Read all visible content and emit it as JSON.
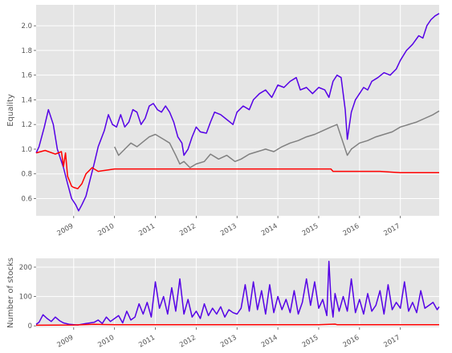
{
  "chart_data": [
    {
      "type": "line",
      "ylabel": "Equality",
      "xlim": [
        2008.08,
        2017.95
      ],
      "ylim": [
        0.46,
        2.17
      ],
      "grid": true,
      "x_ticks": [
        "2009",
        "2010",
        "2011",
        "2012",
        "2013",
        "2014",
        "2015",
        "2016",
        "2017"
      ],
      "y_ticks": [
        "0.6",
        "0.8",
        "1.0",
        "1.2",
        "1.4",
        "1.6",
        "1.8",
        "2.0"
      ],
      "series": [
        {
          "color": "#5500e6",
          "x": [
            2008.08,
            2008.15,
            2008.28,
            2008.38,
            2008.5,
            2008.6,
            2008.75,
            2008.85,
            2008.95,
            2009.05,
            2009.12,
            2009.2,
            2009.3,
            2009.4,
            2009.5,
            2009.6,
            2009.75,
            2009.85,
            2009.95,
            2010.05,
            2010.15,
            2010.25,
            2010.35,
            2010.45,
            2010.55,
            2010.65,
            2010.75,
            2010.85,
            2010.95,
            2011.05,
            2011.15,
            2011.25,
            2011.35,
            2011.45,
            2011.55,
            2011.65,
            2011.7,
            2011.8,
            2011.9,
            2012.0,
            2012.1,
            2012.25,
            2012.35,
            2012.45,
            2012.6,
            2012.75,
            2012.9,
            2013.0,
            2013.15,
            2013.3,
            2013.4,
            2013.55,
            2013.7,
            2013.85,
            2014.0,
            2014.15,
            2014.3,
            2014.45,
            2014.55,
            2014.7,
            2014.85,
            2015.0,
            2015.15,
            2015.25,
            2015.35,
            2015.45,
            2015.55,
            2015.65,
            2015.7,
            2015.8,
            2015.9,
            2016.0,
            2016.1,
            2016.2,
            2016.3,
            2016.45,
            2016.6,
            2016.75,
            2016.9,
            2017.0,
            2017.15,
            2017.3,
            2017.45,
            2017.55,
            2017.65,
            2017.75,
            2017.85,
            2017.95
          ],
          "y": [
            0.97,
            1.02,
            1.18,
            1.32,
            1.2,
            1.0,
            0.85,
            0.72,
            0.6,
            0.55,
            0.5,
            0.55,
            0.62,
            0.75,
            0.88,
            1.02,
            1.15,
            1.28,
            1.2,
            1.18,
            1.28,
            1.18,
            1.22,
            1.32,
            1.3,
            1.2,
            1.25,
            1.35,
            1.37,
            1.32,
            1.3,
            1.35,
            1.3,
            1.22,
            1.1,
            1.05,
            0.95,
            1.0,
            1.1,
            1.18,
            1.14,
            1.13,
            1.22,
            1.3,
            1.28,
            1.24,
            1.2,
            1.3,
            1.35,
            1.32,
            1.4,
            1.45,
            1.48,
            1.42,
            1.52,
            1.5,
            1.55,
            1.58,
            1.48,
            1.5,
            1.45,
            1.5,
            1.48,
            1.42,
            1.55,
            1.6,
            1.58,
            1.32,
            1.08,
            1.3,
            1.4,
            1.45,
            1.5,
            1.48,
            1.55,
            1.58,
            1.62,
            1.6,
            1.65,
            1.72,
            1.8,
            1.85,
            1.92,
            1.9,
            2.0,
            2.05,
            2.08,
            2.1
          ]
        },
        {
          "color": "#808080",
          "x": [
            2010.0,
            2010.1,
            2010.25,
            2010.4,
            2010.55,
            2010.7,
            2010.85,
            2011.0,
            2011.2,
            2011.35,
            2011.5,
            2011.6,
            2011.7,
            2011.85,
            2012.0,
            2012.2,
            2012.35,
            2012.55,
            2012.75,
            2012.95,
            2013.1,
            2013.3,
            2013.5,
            2013.7,
            2013.9,
            2014.1,
            2014.3,
            2014.5,
            2014.7,
            2014.9,
            2015.1,
            2015.3,
            2015.45,
            2015.6,
            2015.7,
            2015.8,
            2016.0,
            2016.2,
            2016.4,
            2016.6,
            2016.8,
            2017.0,
            2017.2,
            2017.4,
            2017.6,
            2017.8,
            2017.95
          ],
          "y": [
            1.02,
            0.95,
            1.0,
            1.05,
            1.02,
            1.06,
            1.1,
            1.12,
            1.08,
            1.05,
            0.95,
            0.88,
            0.9,
            0.85,
            0.88,
            0.9,
            0.96,
            0.92,
            0.95,
            0.9,
            0.92,
            0.96,
            0.98,
            1.0,
            0.98,
            1.02,
            1.05,
            1.07,
            1.1,
            1.12,
            1.15,
            1.18,
            1.2,
            1.05,
            0.95,
            1.0,
            1.05,
            1.07,
            1.1,
            1.12,
            1.14,
            1.18,
            1.2,
            1.22,
            1.25,
            1.28,
            1.31
          ]
        },
        {
          "color": "#ff0000",
          "x": [
            2008.08,
            2008.3,
            2008.55,
            2008.7,
            2008.75,
            2008.8,
            2008.85,
            2008.9,
            2008.95,
            2009.0,
            2009.1,
            2009.2,
            2009.3,
            2009.45,
            2009.6,
            2009.8,
            2010.0,
            2010.5,
            2011.0,
            2011.5,
            2012.0,
            2012.5,
            2013.0,
            2013.5,
            2014.0,
            2014.5,
            2015.0,
            2015.3,
            2015.35,
            2015.5,
            2016.0,
            2016.5,
            2017.0,
            2017.5,
            2017.95
          ],
          "y": [
            0.97,
            0.99,
            0.96,
            0.98,
            0.86,
            0.97,
            0.78,
            0.74,
            0.7,
            0.69,
            0.68,
            0.72,
            0.8,
            0.85,
            0.82,
            0.83,
            0.84,
            0.84,
            0.84,
            0.84,
            0.84,
            0.84,
            0.84,
            0.84,
            0.84,
            0.84,
            0.84,
            0.84,
            0.82,
            0.82,
            0.82,
            0.82,
            0.81,
            0.81,
            0.81
          ]
        }
      ]
    },
    {
      "type": "line",
      "ylabel": "Number of stocks",
      "xlim": [
        2008.08,
        2017.95
      ],
      "ylim": [
        -5,
        230
      ],
      "grid": true,
      "x_ticks": [
        "2009",
        "2010",
        "2011",
        "2012",
        "2013",
        "2014",
        "2015",
        "2016",
        "2017"
      ],
      "y_ticks": [
        "0",
        "100",
        "200"
      ],
      "series": [
        {
          "color": "#5500e6",
          "x": [
            2008.08,
            2008.15,
            2008.25,
            2008.35,
            2008.45,
            2008.55,
            2008.65,
            2008.75,
            2008.9,
            2009.1,
            2009.3,
            2009.5,
            2009.6,
            2009.7,
            2009.8,
            2009.9,
            2010.0,
            2010.1,
            2010.2,
            2010.3,
            2010.4,
            2010.5,
            2010.6,
            2010.7,
            2010.8,
            2010.9,
            2011.0,
            2011.1,
            2011.2,
            2011.3,
            2011.4,
            2011.5,
            2011.6,
            2011.7,
            2011.8,
            2011.9,
            2012.0,
            2012.1,
            2012.2,
            2012.3,
            2012.4,
            2012.5,
            2012.6,
            2012.7,
            2012.8,
            2012.9,
            2013.0,
            2013.1,
            2013.2,
            2013.3,
            2013.4,
            2013.5,
            2013.6,
            2013.7,
            2013.8,
            2013.9,
            2014.0,
            2014.1,
            2014.2,
            2014.3,
            2014.4,
            2014.5,
            2014.6,
            2014.7,
            2014.8,
            2014.9,
            2015.0,
            2015.1,
            2015.2,
            2015.25,
            2015.3,
            2015.35,
            2015.4,
            2015.5,
            2015.6,
            2015.7,
            2015.8,
            2015.9,
            2016.0,
            2016.1,
            2016.2,
            2016.3,
            2016.4,
            2016.5,
            2016.6,
            2016.7,
            2016.8,
            2016.9,
            2017.0,
            2017.1,
            2017.2,
            2017.3,
            2017.4,
            2017.5,
            2017.6,
            2017.7,
            2017.8,
            2017.9,
            2017.95
          ],
          "y": [
            5,
            12,
            38,
            25,
            15,
            30,
            18,
            10,
            5,
            3,
            8,
            12,
            20,
            8,
            30,
            15,
            25,
            35,
            10,
            50,
            20,
            30,
            75,
            40,
            80,
            30,
            150,
            60,
            100,
            40,
            130,
            50,
            160,
            40,
            90,
            30,
            50,
            25,
            75,
            35,
            60,
            40,
            65,
            30,
            55,
            45,
            40,
            60,
            140,
            50,
            150,
            55,
            120,
            40,
            140,
            45,
            100,
            55,
            90,
            45,
            120,
            40,
            80,
            160,
            70,
            150,
            60,
            90,
            35,
            220,
            90,
            30,
            110,
            50,
            100,
            50,
            160,
            45,
            90,
            40,
            110,
            50,
            70,
            120,
            40,
            140,
            55,
            80,
            60,
            150,
            50,
            80,
            45,
            120,
            60,
            70,
            80,
            55,
            65
          ]
        },
        {
          "color": "#ff0000",
          "x": [
            2008.08,
            2009.0,
            2009.5,
            2010.0,
            2011.0,
            2012.0,
            2013.0,
            2014.0,
            2015.0,
            2015.4,
            2015.45,
            2016.0,
            2017.0,
            2017.95
          ],
          "y": [
            2,
            3,
            5,
            4,
            4,
            4,
            4,
            4,
            4,
            6,
            4,
            4,
            4,
            4
          ]
        }
      ]
    }
  ]
}
